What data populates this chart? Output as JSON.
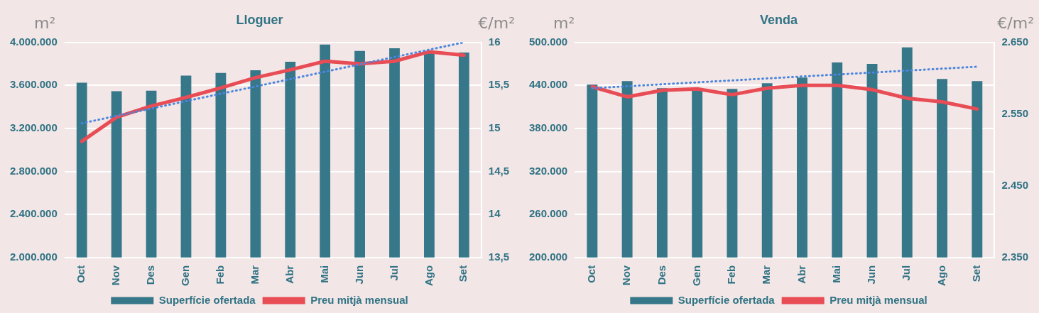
{
  "chart_data": [
    {
      "type": "bar",
      "title": "Lloguer",
      "ylabel": "m²",
      "y2label": "€/m²",
      "categories": [
        "Oct",
        "Nov",
        "Des",
        "Gen",
        "Feb",
        "Mar",
        "Abr",
        "Mai",
        "Jun",
        "Jul",
        "Ago",
        "Set"
      ],
      "series": [
        {
          "name": "Superfície ofertada",
          "color": "#367789",
          "values": [
            3625000,
            3545000,
            3550000,
            3690000,
            3715000,
            3740000,
            3820000,
            3980000,
            3920000,
            3945000,
            3900000,
            3905000
          ]
        },
        {
          "name": "Preu mitjà mensual",
          "type": "line",
          "axis": "y2",
          "color": "#e84c55",
          "values": [
            14.85,
            15.13,
            15.26,
            15.36,
            15.47,
            15.59,
            15.68,
            15.78,
            15.75,
            15.78,
            15.89,
            15.85
          ]
        },
        {
          "type": "line",
          "axis": "y2",
          "color": "#4a86e0",
          "line_style": "dotted",
          "values": [
            15.06,
            null,
            null,
            null,
            null,
            null,
            null,
            null,
            null,
            null,
            null,
            16.0
          ]
        }
      ],
      "ylim": [
        2000000,
        4000000
      ],
      "yticks": [
        {
          "value": 2000000,
          "label": "2.000.000"
        },
        {
          "value": 2400000,
          "label": "2.400.000"
        },
        {
          "value": 2800000,
          "label": "2.800.000"
        },
        {
          "value": 3200000,
          "label": "3.200.000"
        },
        {
          "value": 3600000,
          "label": "3.600.000"
        },
        {
          "value": 4000000,
          "label": "4.000.000"
        }
      ],
      "y2lim": [
        13.5,
        16
      ],
      "y2ticks": [
        {
          "value": 13.5,
          "label": "13,5"
        },
        14,
        {
          "value": 14.5,
          "label": "14,5"
        },
        15,
        {
          "value": 15.5,
          "label": "15,5"
        },
        16
      ],
      "grid": "y",
      "legend": "bottom",
      "marker": "none"
    },
    {
      "type": "bar",
      "title": "Venda",
      "ylabel": "m²",
      "y2label": "€/m²",
      "categories": [
        "Oct",
        "Nov",
        "Des",
        "Gen",
        "Feb",
        "Mar",
        "Abr",
        "Mai",
        "Jun",
        "Jul",
        "Ago",
        "Set"
      ],
      "series": [
        {
          "name": "Superfície ofertada",
          "color": "#367789",
          "values": [
            441000,
            446000,
            436000,
            435000,
            435000,
            443000,
            451000,
            472000,
            470000,
            493000,
            449000,
            446000
          ]
        },
        {
          "name": "Preu mitjà mensual",
          "type": "line",
          "axis": "y2",
          "color": "#e84c55",
          "values": [
            2588,
            2574,
            2583,
            2585,
            2577,
            2586,
            2590,
            2590,
            2584,
            2572,
            2567,
            2557
          ]
        },
        {
          "type": "line",
          "axis": "y2",
          "color": "#4a86e0",
          "line_style": "dotted",
          "values": [
            2586,
            null,
            null,
            null,
            null,
            null,
            null,
            null,
            null,
            null,
            null,
            2616
          ]
        }
      ],
      "ylim": [
        200000,
        500000
      ],
      "yticks": [
        {
          "value": 200000,
          "label": "200.000"
        },
        {
          "value": 260000,
          "label": "260.000"
        },
        {
          "value": 320000,
          "label": "320.000"
        },
        {
          "value": 380000,
          "label": "380.000"
        },
        {
          "value": 440000,
          "label": "440.000"
        },
        {
          "value": 500000,
          "label": "500.000"
        }
      ],
      "y2lim": [
        2350,
        2650
      ],
      "y2ticks": [
        {
          "value": 2350,
          "label": "2.350"
        },
        {
          "value": 2450,
          "label": "2.450"
        },
        {
          "value": 2550,
          "label": "2.550"
        },
        {
          "value": 2650,
          "label": "2.650"
        }
      ],
      "grid": "y",
      "legend": "bottom",
      "marker": "none"
    }
  ]
}
